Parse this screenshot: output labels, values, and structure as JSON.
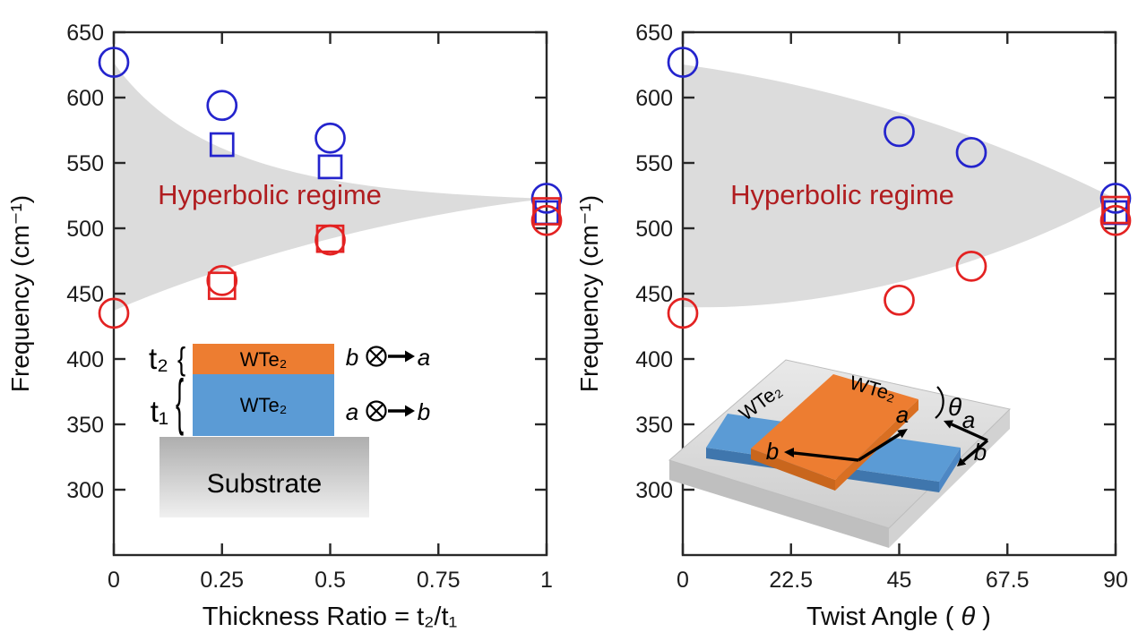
{
  "figure": {
    "background": "#ffffff",
    "frame_color": "#282828",
    "region_color": "#dcdcdc",
    "regime_text_color": "#b01d20",
    "marker_blue": "#2424cd",
    "marker_red": "#e32222"
  },
  "chart_data": [
    {
      "id": "left",
      "type": "scatter",
      "xlabel": "Thickness Ratio = t₂/t₁",
      "ylabel": "Frequency (cm⁻¹)",
      "annotation": "Hyperbolic regime",
      "xlim": [
        0,
        1
      ],
      "ylim": [
        250,
        650
      ],
      "xticks": [
        0,
        0.25,
        0.5,
        0.75,
        1
      ],
      "xtick_labels": [
        "0",
        "0.25",
        "0.5",
        "0.75",
        "1"
      ],
      "yticks": [
        650,
        600,
        550,
        500,
        450,
        400,
        350,
        300
      ],
      "ytick_labels": [
        "650",
        "600",
        "550",
        "500",
        "450",
        "400",
        "350",
        "300"
      ],
      "region_note": "gray shaded wedge spanning 435-627 cm-1 at ratio 0, converging to ~522 cm-1 at ratio 1",
      "series": [
        {
          "name": "blue circles (a-axis phonon)",
          "marker": "circle",
          "color": "#2424cd",
          "size": 16,
          "points": [
            [
              0,
              627
            ],
            [
              0.25,
              594
            ],
            [
              0.5,
              569
            ],
            [
              1,
              523
            ]
          ]
        },
        {
          "name": "blue squares",
          "marker": "square",
          "color": "#2424cd",
          "size": 25,
          "points": [
            [
              0.25,
              564
            ],
            [
              0.5,
              547
            ],
            [
              1,
              512
            ]
          ]
        },
        {
          "name": "red circles (b-axis phonon)",
          "marker": "circle",
          "color": "#e32222",
          "size": 16,
          "points": [
            [
              0,
              435
            ],
            [
              0.25,
              460
            ],
            [
              0.5,
              491
            ],
            [
              1,
              506
            ]
          ]
        },
        {
          "name": "red squares",
          "marker": "square",
          "color": "#e32222",
          "size": 29,
          "points": [
            [
              0.25,
              456
            ],
            [
              0.5,
              492
            ],
            [
              1,
              513
            ]
          ]
        }
      ]
    },
    {
      "id": "right",
      "type": "scatter",
      "xlabel": "Twist Angle (θ)",
      "xlabel_parts": {
        "prefix": "Twist Angle (",
        "theta": "θ",
        "suffix": ")"
      },
      "ylabel": "Frequency (cm⁻¹)",
      "annotation": "Hyperbolic regime",
      "xlim": [
        0,
        90
      ],
      "ylim": [
        250,
        650
      ],
      "xticks": [
        0,
        22.5,
        45,
        67.5,
        90
      ],
      "xtick_labels": [
        "0",
        "22.5",
        "45",
        "67.5",
        "90"
      ],
      "yticks": [
        650,
        600,
        550,
        500,
        450,
        400,
        350,
        300
      ],
      "ytick_labels": [
        "650",
        "600",
        "550",
        "500",
        "450",
        "400",
        "350",
        "300"
      ],
      "region_note": "gray shaded lens spanning 435-627 cm-1 at 0 deg, closing to ~522 cm-1 at 90 deg",
      "series": [
        {
          "name": "blue circles (a-axis phonon)",
          "marker": "circle",
          "color": "#2424cd",
          "size": 16,
          "points": [
            [
              0,
              627
            ],
            [
              45,
              574
            ],
            [
              60,
              558
            ],
            [
              90,
              523
            ]
          ]
        },
        {
          "name": "blue squares",
          "marker": "square",
          "color": "#2424cd",
          "size": 25,
          "points": [
            [
              90,
              512
            ]
          ]
        },
        {
          "name": "red circles (b-axis phonon)",
          "marker": "circle",
          "color": "#e32222",
          "size": 16,
          "points": [
            [
              0,
              435
            ],
            [
              45,
              445
            ],
            [
              60,
              471
            ],
            [
              90,
              506
            ]
          ]
        },
        {
          "name": "red squares",
          "marker": "square",
          "color": "#e32222",
          "size": 29,
          "points": [
            [
              90,
              514
            ]
          ]
        }
      ]
    }
  ],
  "left_inset": {
    "t2_label": "t₂",
    "t1_label": "t₁",
    "brace_glyph": "{",
    "top_layer_label": "WTe₂",
    "bottom_layer_label": "WTe₂",
    "substrate_label": "Substrate",
    "top_layer_color": "#ED7D31",
    "bottom_layer_color": "#5B9BD5",
    "top_row": {
      "left_axis": "b",
      "right_axis": "a"
    },
    "bottom_row": {
      "left_axis": "a",
      "right_axis": "b"
    }
  },
  "right_inset": {
    "top_flake_label": "WTe₂",
    "bottom_flake_label": "WTe₂",
    "top_flake_color": "#ED7D31",
    "bottom_flake_color": "#5B9BD5",
    "angle_label": "θ",
    "top_flake_a": "a",
    "top_flake_b": "b",
    "bottom_flake_a": "a",
    "bottom_flake_b": "b"
  }
}
